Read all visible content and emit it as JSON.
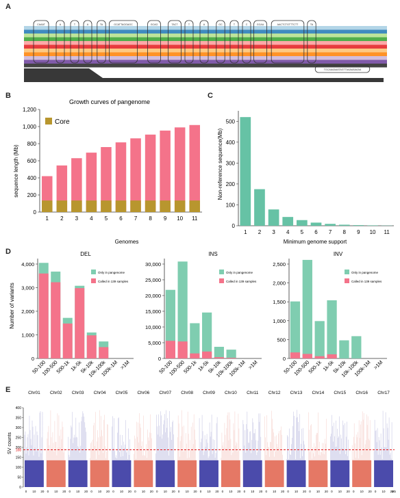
{
  "panels": {
    "a": "A",
    "b": "B",
    "c": "C",
    "d": "D",
    "e": "E"
  },
  "panel_a": {
    "stripe_colors": [
      "#a6cee3",
      "#1f78b4",
      "#b2df8a",
      "#33a02c",
      "#fb9a99",
      "#e31a1c",
      "#fdbf6f",
      "#ff7f00",
      "#cab2d6",
      "#6a3d9a",
      "#222222"
    ],
    "node_labels": [
      "CAAAT",
      "A",
      "T",
      "A",
      "TA",
      "GCATTAGGAGC",
      "GCAG",
      "TACT",
      "T",
      "A",
      "GC",
      "T",
      "C",
      "GCAA",
      "AACTCTGTTTCTT",
      "TA",
      "TGCAAAAAATAGTTAAAAAAAAA"
    ]
  },
  "chart_data": [
    {
      "id": "B",
      "type": "bar",
      "title": "Growth curves of pangenome",
      "xlabel": "Genomes",
      "ylabel": "sequence length (Mb)",
      "categories": [
        "1",
        "2",
        "3",
        "4",
        "5",
        "6",
        "7",
        "8",
        "9",
        "10",
        "11"
      ],
      "ylim": [
        0,
        1200
      ],
      "yticks": [
        "0",
        "200",
        "400",
        "600",
        "800",
        "1,000",
        "1,200"
      ],
      "series": [
        {
          "name": "Core",
          "color": "#b8962e",
          "values": [
            135,
            135,
            135,
            135,
            135,
            135,
            135,
            135,
            135,
            135,
            135
          ]
        },
        {
          "name": "",
          "color": "#f4738a",
          "values": [
            420,
            545,
            630,
            695,
            760,
            815,
            862,
            906,
            953,
            990,
            1018
          ],
          "label_note": "total"
        }
      ],
      "legend": {
        "position": "top-left",
        "entries": [
          "Core"
        ]
      }
    },
    {
      "id": "C",
      "type": "bar",
      "xlabel": "Minimum genome support",
      "ylabel": "Non-reference sequence(Mb)",
      "categories": [
        "1",
        "2",
        "3",
        "4",
        "5",
        "6",
        "7",
        "8",
        "9",
        "10",
        "11"
      ],
      "ylim": [
        0,
        550
      ],
      "yticks": [
        "0",
        "100",
        "200",
        "300",
        "400",
        "500"
      ],
      "color": "#66c2a5",
      "values": [
        520,
        175,
        78,
        42,
        27,
        15,
        9,
        5,
        3,
        2,
        1
      ]
    },
    {
      "id": "D-DEL",
      "type": "bar",
      "title": "DEL",
      "ylabel": "Number of variants",
      "categories": [
        "50-100",
        "100-500",
        "500-1k",
        "1k-5k",
        "5k-10k",
        "10k-100k",
        "100k-1M",
        ">1M"
      ],
      "ylim": [
        0,
        4000
      ],
      "yticks": [
        "0",
        "1,000",
        "2,000",
        "3,000",
        "4,000"
      ],
      "series": [
        {
          "name": "Only in pangenome",
          "color": "#7fcdb0",
          "values": [
            4050,
            3680,
            1720,
            3080,
            1100,
            720,
            0,
            0
          ]
        },
        {
          "name": "Called in 139 samples",
          "color": "#f4738a",
          "values": [
            3600,
            3230,
            1480,
            2980,
            980,
            480,
            0,
            0
          ]
        }
      ],
      "legend": {
        "position": "top-right"
      }
    },
    {
      "id": "D-INS",
      "type": "bar",
      "title": "INS",
      "categories": [
        "50-100",
        "100-500",
        "500-1k",
        "1k-5k",
        "5k-10k",
        "10k-100k",
        "100k-1M",
        ">1M"
      ],
      "ylim": [
        0,
        30000
      ],
      "yticks": [
        "0",
        "5,000",
        "10,000",
        "15,000",
        "20,000",
        "25,000",
        "30,000"
      ],
      "series": [
        {
          "name": "Only in pangenome",
          "color": "#7fcdb0",
          "values": [
            21800,
            30800,
            11200,
            14600,
            3700,
            2800,
            0,
            0
          ]
        },
        {
          "name": "Called in 139 samples",
          "color": "#f4738a",
          "values": [
            5600,
            5400,
            1600,
            2200,
            400,
            200,
            0,
            0
          ]
        }
      ],
      "legend": {
        "position": "top-right"
      }
    },
    {
      "id": "D-INV",
      "type": "bar",
      "title": "INV",
      "categories": [
        "50-100",
        "100-500",
        "500-1k",
        "1k-5k",
        "5k-10k",
        "10k-100k",
        "100k-1M",
        ">1M"
      ],
      "ylim": [
        0,
        2500
      ],
      "yticks": [
        "0",
        "500",
        "1,000",
        "1,500",
        "2,000",
        "2,500"
      ],
      "series": [
        {
          "name": "Only in pangenome",
          "color": "#7fcdb0",
          "values": [
            1510,
            2610,
            990,
            1540,
            480,
            590,
            0,
            0
          ]
        },
        {
          "name": "Called in 139 samples",
          "color": "#f4738a",
          "values": [
            160,
            120,
            60,
            110,
            0,
            0,
            0,
            0
          ]
        }
      ],
      "legend": {
        "position": "top-right"
      }
    },
    {
      "id": "E",
      "type": "area",
      "ylabel": "SV counts",
      "ylim": [
        0,
        400
      ],
      "yticks": [
        "0",
        "50",
        "100",
        "150",
        "200",
        "250",
        "300",
        "350",
        "400"
      ],
      "threshold": {
        "value": 188,
        "label": "188",
        "color": "#e31a1c"
      },
      "chromosomes": [
        "Chr01",
        "Chr02",
        "Chr03",
        "Chr04",
        "Chr05",
        "Chr06",
        "Chr07",
        "Chr08",
        "Chr09",
        "Chr10",
        "Chr11",
        "Chr12",
        "Chr13",
        "Chr14",
        "Chr15",
        "Chr16",
        "Chr17"
      ],
      "chrom_colors": [
        "#2b2b9c",
        "#e0604a"
      ],
      "xunit": "Mb"
    }
  ]
}
